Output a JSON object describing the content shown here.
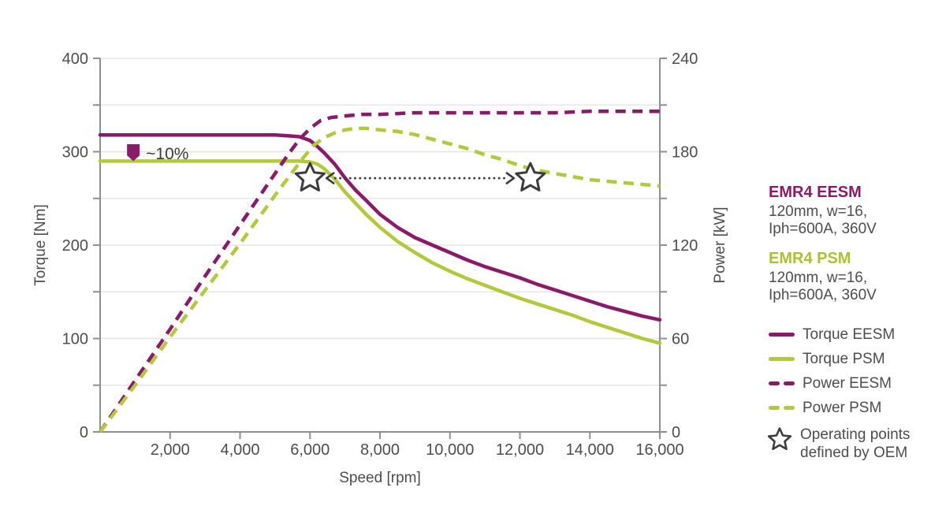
{
  "chart_data": {
    "type": "line",
    "title": "",
    "x_axis": {
      "label": "Speed [rpm]",
      "range": [
        0,
        16000
      ],
      "ticks": [
        2000,
        4000,
        6000,
        8000,
        10000,
        12000,
        14000,
        16000
      ],
      "tick_format": "thousands-comma"
    },
    "y_left": {
      "label": "Torque [Nm]",
      "range": [
        0,
        400
      ],
      "ticks": [
        0,
        100,
        200,
        300,
        400
      ],
      "minor_ticks": [
        50,
        150,
        250,
        350
      ],
      "grid_step": 50
    },
    "y_right": {
      "label": "Power [kW]",
      "range": [
        0,
        240
      ],
      "ticks": [
        0,
        60,
        120,
        180,
        240
      ],
      "minor_ticks": [
        30,
        90,
        150,
        210
      ]
    },
    "grid": true,
    "legend_position": "right",
    "colors": {
      "axis": "#8f8f8f",
      "grid": "#e6e6e6",
      "text": "#4d4d4d",
      "marker": "#3c3c3c",
      "purple": "#8c1a6a",
      "green": "#b3c93b"
    },
    "series": [
      {
        "name": "Torque EESM",
        "axis": "left",
        "style": "solid",
        "color": "#8c1a6a",
        "points": [
          [
            0,
            318
          ],
          [
            1000,
            318
          ],
          [
            2000,
            318
          ],
          [
            3000,
            318
          ],
          [
            4000,
            318
          ],
          [
            5000,
            318
          ],
          [
            5400,
            317
          ],
          [
            5700,
            316
          ],
          [
            6000,
            312
          ],
          [
            6200,
            306
          ],
          [
            6400,
            299
          ],
          [
            6700,
            287
          ],
          [
            7000,
            272
          ],
          [
            7300,
            259
          ],
          [
            7600,
            248
          ],
          [
            8000,
            233
          ],
          [
            8500,
            219
          ],
          [
            9000,
            208
          ],
          [
            9500,
            200
          ],
          [
            10000,
            192
          ],
          [
            10500,
            184
          ],
          [
            11000,
            177
          ],
          [
            11500,
            171
          ],
          [
            12000,
            165
          ],
          [
            12500,
            158
          ],
          [
            13000,
            152
          ],
          [
            13500,
            146
          ],
          [
            14000,
            140
          ],
          [
            14500,
            134
          ],
          [
            15000,
            129
          ],
          [
            15500,
            124
          ],
          [
            16000,
            120
          ]
        ]
      },
      {
        "name": "Torque PSM",
        "axis": "left",
        "style": "solid",
        "color": "#b3c93b",
        "points": [
          [
            0,
            290
          ],
          [
            1000,
            290
          ],
          [
            2000,
            290
          ],
          [
            3000,
            290
          ],
          [
            4000,
            290
          ],
          [
            5000,
            290
          ],
          [
            5700,
            290
          ],
          [
            6000,
            289
          ],
          [
            6200,
            287
          ],
          [
            6400,
            282
          ],
          [
            6700,
            271
          ],
          [
            7000,
            257
          ],
          [
            7300,
            245
          ],
          [
            7600,
            233
          ],
          [
            8000,
            219
          ],
          [
            8500,
            204
          ],
          [
            9000,
            192
          ],
          [
            9500,
            181
          ],
          [
            10000,
            172
          ],
          [
            10500,
            164
          ],
          [
            11000,
            157
          ],
          [
            11500,
            150
          ],
          [
            12000,
            143
          ],
          [
            12500,
            137
          ],
          [
            13000,
            131
          ],
          [
            13500,
            125
          ],
          [
            14000,
            118
          ],
          [
            14500,
            112
          ],
          [
            15000,
            106
          ],
          [
            15500,
            100
          ],
          [
            16000,
            95
          ]
        ]
      },
      {
        "name": "Power EESM",
        "axis": "right",
        "style": "dashed",
        "color": "#8c1a6a",
        "points": [
          [
            0,
            0
          ],
          [
            1000,
            33
          ],
          [
            2000,
            66
          ],
          [
            3000,
            100
          ],
          [
            4000,
            133
          ],
          [
            5000,
            166
          ],
          [
            5400,
            179
          ],
          [
            5700,
            188
          ],
          [
            6000,
            195
          ],
          [
            6300,
            200
          ],
          [
            6600,
            202
          ],
          [
            7000,
            203
          ],
          [
            7500,
            204
          ],
          [
            8000,
            204
          ],
          [
            9000,
            205
          ],
          [
            10000,
            205
          ],
          [
            11000,
            205
          ],
          [
            12000,
            205
          ],
          [
            13000,
            205
          ],
          [
            14000,
            206
          ],
          [
            15000,
            206
          ],
          [
            16000,
            206
          ]
        ]
      },
      {
        "name": "Power PSM",
        "axis": "right",
        "style": "dashed",
        "color": "#b3c93b",
        "points": [
          [
            0,
            0
          ],
          [
            1000,
            30
          ],
          [
            2000,
            61
          ],
          [
            3000,
            91
          ],
          [
            4000,
            121
          ],
          [
            5000,
            152
          ],
          [
            5500,
            167
          ],
          [
            5800,
            176
          ],
          [
            6100,
            184
          ],
          [
            6400,
            189
          ],
          [
            6700,
            192
          ],
          [
            7000,
            194
          ],
          [
            7300,
            195
          ],
          [
            7600,
            195
          ],
          [
            8000,
            194
          ],
          [
            8500,
            193
          ],
          [
            9000,
            191
          ],
          [
            9500,
            188
          ],
          [
            10000,
            185
          ],
          [
            10500,
            182
          ],
          [
            11000,
            178
          ],
          [
            11500,
            175
          ],
          [
            12000,
            171
          ],
          [
            12500,
            168
          ],
          [
            13000,
            166
          ],
          [
            13500,
            164
          ],
          [
            14000,
            162
          ],
          [
            14500,
            161
          ],
          [
            15000,
            160
          ],
          [
            15500,
            159
          ],
          [
            16000,
            158
          ]
        ]
      }
    ],
    "operating_points": {
      "label": "Operating points defined by OEM",
      "points": [
        {
          "speed_rpm": 6000,
          "power_kW": 163
        },
        {
          "speed_rpm": 12300,
          "power_kW": 163
        }
      ]
    },
    "shift_arrow": {
      "power_kW": 163,
      "from_rpm": 6000,
      "to_rpm": 12300,
      "style": "dotted-double-headed"
    },
    "annotation": {
      "label": "~10%",
      "speed_rpm": 950,
      "top_torque": 308,
      "shoulder_torque": 296,
      "tip_torque": 290
    }
  },
  "legend": {
    "eesm": {
      "title": "EMR4 EESM",
      "line1": "120mm, w=16,",
      "line2": "Iph=600A, 360V"
    },
    "psm": {
      "title": "EMR4 PSM",
      "line1": "120mm, w=16,",
      "line2": "Iph=600A, 360V"
    },
    "items": [
      {
        "label": "Torque EESM",
        "style": "solid",
        "color": "#8c1a6a"
      },
      {
        "label": "Torque PSM",
        "style": "solid",
        "color": "#b3c93b"
      },
      {
        "label": "Power EESM",
        "style": "dashed",
        "color": "#8c1a6a"
      },
      {
        "label": "Power PSM",
        "style": "dashed",
        "color": "#b3c93b"
      }
    ],
    "star": {
      "line1": "Operating points",
      "line2": "defined by OEM"
    }
  }
}
